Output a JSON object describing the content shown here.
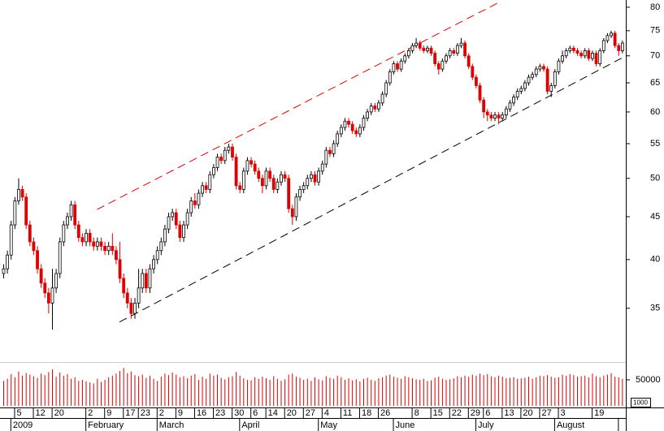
{
  "chart_data": {
    "type": "candlestick",
    "categories": [
      null,
      null,
      null,
      null,
      "5",
      null,
      null,
      null,
      null,
      "12",
      null,
      null,
      null,
      null,
      "20",
      null,
      null,
      null,
      null,
      null,
      null,
      null,
      null,
      "2",
      null,
      null,
      null,
      null,
      "9",
      null,
      null,
      null,
      null,
      "17",
      null,
      null,
      null,
      "23",
      null,
      null,
      null,
      null,
      "2",
      null,
      null,
      null,
      null,
      "9",
      null,
      null,
      null,
      null,
      "16",
      null,
      null,
      null,
      null,
      "23",
      null,
      null,
      null,
      null,
      "30",
      null,
      null,
      null,
      null,
      "6",
      null,
      null,
      null,
      "14",
      null,
      null,
      null,
      null,
      "20",
      null,
      null,
      null,
      null,
      "27",
      null,
      null,
      null,
      null,
      "4",
      null,
      null,
      null,
      null,
      "11",
      null,
      null,
      null,
      null,
      "18",
      null,
      null,
      null,
      null,
      "26",
      null,
      null,
      null,
      null,
      null,
      null,
      null,
      null,
      "8",
      null,
      null,
      null,
      null,
      "15",
      null,
      null,
      null,
      null,
      "22",
      null,
      null,
      null,
      null,
      "29",
      null,
      null,
      null,
      "6",
      null,
      null,
      null,
      null,
      "13",
      null,
      null,
      null,
      null,
      "20",
      null,
      null,
      null,
      null,
      "27",
      null,
      null,
      null,
      null,
      "3",
      null,
      null,
      null,
      null,
      null,
      null,
      null,
      null,
      "19",
      null,
      null,
      null,
      null,
      null,
      null,
      null
    ],
    "months": [
      null,
      null,
      null,
      "2009",
      null,
      null,
      null,
      null,
      null,
      null,
      null,
      null,
      null,
      null,
      null,
      null,
      null,
      null,
      null,
      null,
      null,
      null,
      null,
      "February",
      null,
      null,
      null,
      null,
      null,
      null,
      null,
      null,
      null,
      null,
      null,
      null,
      null,
      null,
      null,
      null,
      null,
      null,
      "March",
      null,
      null,
      null,
      null,
      null,
      null,
      null,
      null,
      null,
      null,
      null,
      null,
      null,
      null,
      null,
      null,
      null,
      null,
      null,
      null,
      null,
      "April",
      null,
      null,
      null,
      null,
      null,
      null,
      null,
      null,
      null,
      null,
      null,
      null,
      null,
      null,
      null,
      null,
      null,
      null,
      null,
      null,
      "May",
      null,
      null,
      null,
      null,
      null,
      null,
      null,
      null,
      null,
      null,
      null,
      null,
      null,
      null,
      null,
      null,
      null,
      null,
      null,
      "June",
      null,
      null,
      null,
      null,
      null,
      null,
      null,
      null,
      null,
      null,
      null,
      null,
      null,
      null,
      null,
      null,
      null,
      null,
      null,
      null,
      null,
      "July",
      null,
      null,
      null,
      null,
      null,
      null,
      null,
      null,
      null,
      null,
      null,
      null,
      null,
      null,
      null,
      null,
      null,
      null,
      null,
      null,
      "August",
      null,
      null,
      null,
      null,
      null,
      null,
      null,
      null,
      null,
      null,
      null,
      null,
      null,
      null,
      null,
      null
    ],
    "open": [
      38.5,
      39,
      40.5,
      44,
      47,
      48.5,
      47.5,
      44,
      42,
      41,
      39,
      37.5,
      36.5,
      35.5,
      37,
      38.5,
      42,
      44,
      45,
      46.5,
      44,
      42.5,
      42,
      43,
      42,
      41.5,
      42,
      41.5,
      41,
      41.5,
      41,
      40,
      38,
      36.5,
      35.5,
      34.5,
      35.5,
      37,
      38.5,
      37,
      39,
      40,
      41,
      42,
      43.5,
      45,
      45.5,
      44,
      42.5,
      44,
      45.5,
      47,
      46.5,
      48,
      49,
      48.5,
      50.5,
      51.5,
      53,
      52.5,
      54,
      54.5,
      53,
      49,
      48.5,
      51,
      52.5,
      52,
      51,
      50,
      49,
      51,
      50,
      48.5,
      49.5,
      50.5,
      50,
      46,
      45,
      47.5,
      48.5,
      49,
      50,
      50.5,
      49.5,
      51,
      52,
      54,
      53.5,
      55,
      56.5,
      57.5,
      58.5,
      58,
      57,
      56.5,
      57.5,
      59,
      60,
      61,
      60.5,
      61.5,
      63,
      65,
      67,
      68.5,
      67.5,
      69,
      70,
      71,
      72,
      72.5,
      71.5,
      71,
      71.5,
      70.5,
      68.5,
      67.5,
      69,
      70,
      71,
      70.5,
      72,
      72.5,
      70,
      68,
      66,
      64.5,
      62,
      60,
      59.5,
      59,
      59.5,
      59,
      59.5,
      60.5,
      61.5,
      62.5,
      63.5,
      64,
      65,
      66,
      66.5,
      67.5,
      68,
      67.5,
      63.5,
      64.5,
      67,
      69,
      70,
      71,
      71.5,
      71,
      70.5,
      70,
      71,
      69.5,
      70.5,
      68.5,
      71,
      73,
      74,
      74.5,
      72,
      71
    ],
    "high": [
      39.5,
      41,
      44.5,
      47.5,
      50,
      49,
      48,
      44.5,
      42.5,
      41.5,
      39.5,
      38,
      37,
      39,
      39,
      42.5,
      44.5,
      45.5,
      47,
      47,
      44.5,
      43,
      43.5,
      43.5,
      42.5,
      42.5,
      42.5,
      42,
      42,
      43,
      41.5,
      42,
      38.5,
      37,
      36,
      36,
      39,
      39,
      39,
      39.5,
      40.5,
      41.5,
      42.5,
      44,
      45.5,
      46,
      46,
      44.5,
      44.5,
      46,
      47.5,
      48,
      48.5,
      49.5,
      49.5,
      51,
      52,
      53.5,
      53.5,
      54.5,
      55,
      55,
      53.5,
      49.5,
      51.5,
      53,
      53,
      52.5,
      51.5,
      50.5,
      51.5,
      51.5,
      50.5,
      50,
      51,
      51,
      50.5,
      46.5,
      48,
      49,
      49.5,
      50.5,
      51,
      51,
      51.5,
      52.5,
      54.5,
      54.5,
      55.5,
      57,
      58,
      59,
      59,
      58.5,
      57.5,
      58,
      59.5,
      60.5,
      61.5,
      61.5,
      62,
      63.5,
      65.5,
      67.5,
      69,
      69,
      69.5,
      70.5,
      71.5,
      72.5,
      73.5,
      73,
      72,
      72,
      72,
      71,
      69,
      69.5,
      70.5,
      71.5,
      71.5,
      72.5,
      73.5,
      73,
      70.5,
      68.5,
      66.5,
      65,
      62.5,
      60.5,
      60,
      60,
      60,
      60,
      61,
      62,
      63,
      64,
      64.5,
      65.5,
      66.5,
      67,
      68,
      68.5,
      68.5,
      68,
      65,
      67.5,
      69.5,
      71,
      71.5,
      72,
      72,
      71.5,
      71,
      71.5,
      71.5,
      71,
      71,
      71.5,
      73.5,
      74.5,
      75,
      75,
      72.5,
      73
    ],
    "low": [
      38,
      38.5,
      40,
      43.5,
      46.5,
      47,
      43.5,
      41.5,
      40.5,
      38.5,
      37,
      36,
      34.5,
      33,
      36.5,
      38,
      41.5,
      43.5,
      44.5,
      43.5,
      42,
      41.5,
      41.5,
      41.5,
      41,
      41,
      41,
      40.5,
      40.5,
      40.5,
      39.5,
      37.5,
      36,
      35,
      34,
      34,
      35,
      36.5,
      36.5,
      36.5,
      38.5,
      39.5,
      40.5,
      41.5,
      43,
      44.5,
      43.5,
      42,
      42,
      43.5,
      45,
      46,
      46,
      47.5,
      48,
      48,
      50,
      51,
      52,
      52,
      53.5,
      52.5,
      48.5,
      48,
      48,
      50.5,
      51.5,
      50.5,
      49.5,
      48,
      48.5,
      49.5,
      48,
      48,
      49,
      49.5,
      45.5,
      44,
      44.5,
      47,
      48,
      48.5,
      49.5,
      49,
      49,
      50.5,
      51.5,
      53,
      53,
      54.5,
      56,
      57,
      57.5,
      56.5,
      56,
      56,
      57,
      58.5,
      59.5,
      60,
      60,
      61,
      62.5,
      64.5,
      66.5,
      67,
      67,
      68.5,
      69.5,
      70.5,
      71.5,
      71,
      70.5,
      70.5,
      70,
      68,
      66.5,
      67,
      68.5,
      69.5,
      70,
      70,
      71.5,
      69.5,
      67.5,
      65.5,
      64,
      61.5,
      59,
      58.5,
      58.5,
      58.5,
      58,
      58.5,
      59,
      60,
      61,
      62,
      63,
      63.5,
      64.5,
      65.5,
      66,
      67,
      67,
      63,
      62.5,
      64,
      66.5,
      68.5,
      69.5,
      70.5,
      70.5,
      70,
      69.5,
      69.5,
      69,
      69,
      68,
      68,
      70.5,
      72.5,
      73.5,
      71.5,
      70,
      70.5
    ],
    "close": [
      39,
      40.5,
      44,
      47,
      48.5,
      47.5,
      44,
      42,
      41,
      39,
      37.5,
      36.5,
      35.5,
      37,
      38.5,
      42,
      44,
      45,
      46.5,
      44,
      42.5,
      42,
      43,
      42,
      41.5,
      42,
      41.5,
      41,
      41.5,
      41,
      40,
      38,
      36.5,
      35.5,
      34.5,
      35.5,
      37,
      38.5,
      37,
      39,
      40,
      41,
      42,
      43.5,
      45,
      45.5,
      44,
      42.5,
      44,
      45.5,
      47,
      46.5,
      48,
      49,
      48.5,
      50.5,
      51.5,
      53,
      52.5,
      54,
      54.5,
      53,
      49,
      48.5,
      51,
      52.5,
      52,
      51,
      50,
      49,
      51,
      50,
      48.5,
      49.5,
      50.5,
      50,
      46,
      45,
      47.5,
      48.5,
      49,
      50,
      50.5,
      49.5,
      51,
      52,
      54,
      53.5,
      55,
      56.5,
      57.5,
      58.5,
      58,
      57,
      56.5,
      57.5,
      59,
      60,
      61,
      60.5,
      61.5,
      63,
      65,
      67,
      68.5,
      67.5,
      69,
      70,
      71,
      72,
      72.5,
      71.5,
      71,
      71.5,
      70.5,
      68.5,
      67.5,
      69,
      70,
      71,
      70.5,
      72,
      72.5,
      70,
      68,
      66,
      64.5,
      62,
      60,
      59.5,
      59,
      59.5,
      59,
      59.5,
      60.5,
      61.5,
      62.5,
      63.5,
      64,
      65,
      66,
      66.5,
      67.5,
      68,
      67.5,
      63.5,
      64.5,
      67,
      69,
      70,
      71,
      71.5,
      71,
      70.5,
      70,
      71,
      69.5,
      70.5,
      68.5,
      71,
      73,
      74,
      74.5,
      72,
      71,
      72.5
    ],
    "volume": [
      48000,
      52000,
      61000,
      55000,
      66000,
      58000,
      63000,
      60000,
      57000,
      54000,
      62000,
      59000,
      65000,
      70000,
      56000,
      64000,
      58000,
      61000,
      52000,
      55000,
      48000,
      50000,
      47000,
      45000,
      43000,
      52000,
      46000,
      50000,
      55000,
      58000,
      62000,
      67000,
      73000,
      63000,
      66000,
      59000,
      57000,
      60000,
      54000,
      58000,
      52000,
      48000,
      56000,
      62000,
      59000,
      64000,
      60000,
      55000,
      57000,
      53000,
      58000,
      61000,
      50000,
      56000,
      52000,
      62000,
      58000,
      60000,
      54000,
      51000,
      55000,
      57000,
      65000,
      58000,
      53000,
      50000,
      49000,
      55000,
      52000,
      56000,
      53000,
      50000,
      57000,
      52000,
      48000,
      51000,
      60000,
      62000,
      56000,
      54000,
      50000,
      52000,
      48000,
      55000,
      51000,
      49000,
      57000,
      54000,
      52000,
      58000,
      55000,
      50000,
      53000,
      49000,
      51000,
      47000,
      52000,
      54000,
      50000,
      48000,
      53000,
      55000,
      58000,
      60000,
      56000,
      54000,
      52000,
      57000,
      55000,
      53000,
      51000,
      50000,
      52000,
      48000,
      49000,
      54000,
      56000,
      52000,
      50000,
      51000,
      53000,
      57000,
      55000,
      58000,
      56000,
      60000,
      58000,
      62000,
      59000,
      61000,
      57000,
      55000,
      58000,
      56000,
      53000,
      54000,
      55000,
      52000,
      53000,
      54000,
      56000,
      52000,
      55000,
      58000,
      57000,
      59000,
      56000,
      54000,
      55000,
      60000,
      58000,
      61000,
      59000,
      56000,
      57000,
      58000,
      55000,
      62000,
      57000,
      55000,
      58000,
      60000,
      63000,
      56000,
      55000,
      52000
    ],
    "up_color": "#ffffff",
    "down_color": "#e00000",
    "volume_color": "#e00000",
    "ylim": [
      30.6,
      81.6
    ],
    "log_scale": true,
    "yticks": [
      35,
      40,
      45,
      50,
      55,
      60,
      65,
      70,
      75,
      80
    ],
    "volume_ylim": [
      0,
      78000
    ],
    "volume_yticks": [
      50000
    ],
    "volume_unit": "1000",
    "trendlines": [
      {
        "color": "#e00000",
        "start": [
          25,
          45.9
        ],
        "end": [
          132,
          81
        ]
      },
      {
        "color": "#000000",
        "start": [
          31,
          33.7
        ],
        "end": [
          165,
          69.6
        ]
      }
    ]
  }
}
